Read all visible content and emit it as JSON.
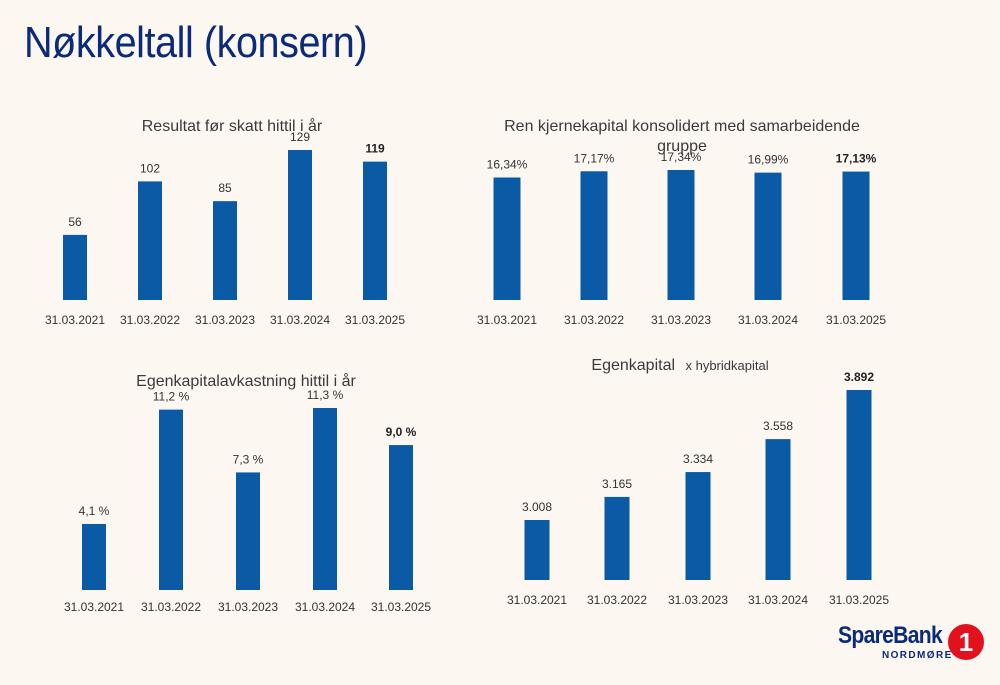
{
  "page": {
    "title": "Nøkkeltall (konsern)"
  },
  "logo": {
    "name": "SpareBank",
    "digit": "1",
    "sub": "NORDMØRE"
  },
  "chart_data": [
    {
      "type": "bar",
      "title": "Resultat før skatt hittil i år",
      "categories": [
        "31.03.2021",
        "31.03.2022",
        "31.03.2023",
        "31.03.2024",
        "31.03.2025"
      ],
      "values": [
        56,
        102,
        85,
        129,
        119
      ],
      "labels": [
        "56",
        "102",
        "85",
        "129",
        "119"
      ],
      "highlight_last": true,
      "ylim": [
        0,
        140
      ],
      "grid": false,
      "color": "#0b5aa6"
    },
    {
      "type": "bar",
      "title": "Ren kjernekapital konsolidert med samarbeidende gruppe",
      "categories": [
        "31.03.2021",
        "31.03.2022",
        "31.03.2023",
        "31.03.2024",
        "31.03.2025"
      ],
      "values": [
        16.34,
        17.17,
        17.34,
        16.99,
        17.13
      ],
      "labels": [
        "16,34%",
        "17,17%",
        "17,34%",
        "16,99%",
        "17,13%"
      ],
      "highlight_last": true,
      "ylim": [
        0,
        18
      ],
      "grid": false,
      "color": "#0b5aa6"
    },
    {
      "type": "bar",
      "title": "Egenkapitalavkastning hittil i år",
      "categories": [
        "31.03.2021",
        "31.03.2022",
        "31.03.2023",
        "31.03.2024",
        "31.03.2025"
      ],
      "values": [
        4.1,
        11.2,
        7.3,
        11.3,
        9.0
      ],
      "labels": [
        "4,1 %",
        "11,2 %",
        "7,3 %",
        "11,3 %",
        "9,0 %"
      ],
      "highlight_last": true,
      "ylim": [
        0,
        12
      ],
      "grid": false,
      "color": "#0b5aa6"
    },
    {
      "type": "bar",
      "title": "Egenkapital",
      "subtitle": "x hybridkapital",
      "categories": [
        "31.03.2021",
        "31.03.2022",
        "31.03.2023",
        "31.03.2024",
        "31.03.2025"
      ],
      "values": [
        3008,
        3165,
        3334,
        3558,
        3892
      ],
      "labels": [
        "3.008",
        "3.165",
        "3.334",
        "3.558",
        "3.892"
      ],
      "highlight_last": true,
      "ylim": [
        2600,
        3950
      ],
      "grid": false,
      "color": "#0b5aa6"
    }
  ]
}
